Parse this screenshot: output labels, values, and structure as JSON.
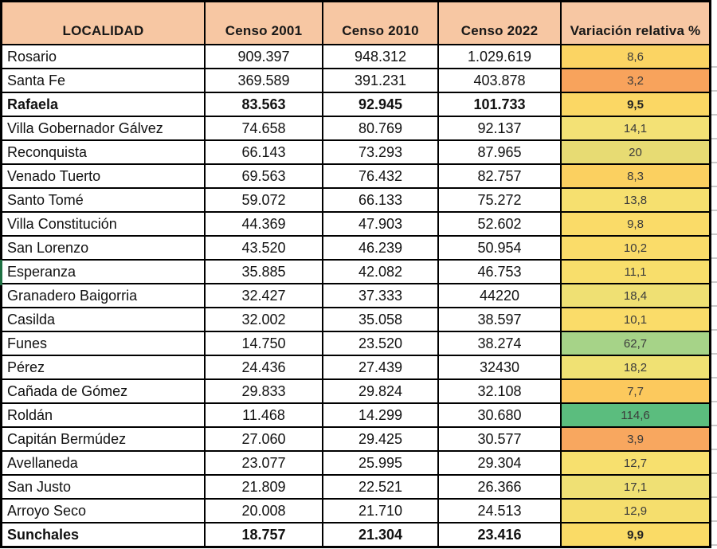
{
  "table": {
    "columns": [
      "LOCALIDAD",
      "Censo 2001",
      "Censo 2010",
      "Censo 2022",
      "Variación relativa %"
    ],
    "rows": [
      {
        "localidad": "Rosario",
        "censo_2001": "909.397",
        "censo_2010": "948.312",
        "censo_2022": "1.029.619",
        "variacion": "8,6",
        "variacion_color": "#FBD463",
        "bold": false
      },
      {
        "localidad": "Santa Fe",
        "censo_2001": "369.589",
        "censo_2010": "391.231",
        "censo_2022": "403.878",
        "variacion": "3,2",
        "variacion_color": "#F8A35C",
        "bold": false
      },
      {
        "localidad": "Rafaela",
        "censo_2001": "83.563",
        "censo_2010": "92.945",
        "censo_2022": "101.733",
        "variacion": "9,5",
        "variacion_color": "#FBD764",
        "bold": true
      },
      {
        "localidad": "Villa Gobernador Gálvez",
        "censo_2001": "74.658",
        "censo_2010": "80.769",
        "censo_2022": "92.137",
        "variacion": "14,1",
        "variacion_color": "#F3E175",
        "bold": false
      },
      {
        "localidad": "Reconquista",
        "censo_2001": "66.143",
        "censo_2010": "73.293",
        "censo_2022": "87.965",
        "variacion": "20",
        "variacion_color": "#E7DB73",
        "bold": false
      },
      {
        "localidad": "Venado Tuerto",
        "censo_2001": "69.563",
        "censo_2010": "76.432",
        "censo_2022": "82.757",
        "variacion": "8,3",
        "variacion_color": "#FBD060",
        "bold": false
      },
      {
        "localidad": "Santo Tomé",
        "censo_2001": "59.072",
        "censo_2010": "66.133",
        "censo_2022": "75.272",
        "variacion": "13,8",
        "variacion_color": "#F6E06F",
        "bold": false
      },
      {
        "localidad": "Villa Constitución",
        "censo_2001": "44.369",
        "censo_2010": "47.903",
        "censo_2022": "52.602",
        "variacion": "9,8",
        "variacion_color": "#FADB68",
        "bold": false
      },
      {
        "localidad": "San Lorenzo",
        "censo_2001": "43.520",
        "censo_2010": "46.239",
        "censo_2022": "50.954",
        "variacion": "10,2",
        "variacion_color": "#FADC69",
        "bold": false
      },
      {
        "localidad": "Esperanza",
        "censo_2001": "35.885",
        "censo_2010": "42.082",
        "censo_2022": "46.753",
        "variacion": "11,1",
        "variacion_color": "#F8DE6B",
        "bold": false
      },
      {
        "localidad": "Granadero Baigorria",
        "censo_2001": "32.427",
        "censo_2010": "37.333",
        "censo_2022": "44220",
        "variacion": "18,4",
        "variacion_color": "#EFE073",
        "bold": false
      },
      {
        "localidad": "Casilda",
        "censo_2001": "32.002",
        "censo_2010": "35.058",
        "censo_2022": "38.597",
        "variacion": "10,1",
        "variacion_color": "#FADC69",
        "bold": false
      },
      {
        "localidad": "Funes",
        "censo_2001": "14.750",
        "censo_2010": "23.520",
        "censo_2022": "38.274",
        "variacion": "62,7",
        "variacion_color": "#A6D388",
        "bold": false
      },
      {
        "localidad": "Pérez",
        "censo_2001": "24.436",
        "censo_2010": "27.439",
        "censo_2022": "32430",
        "variacion": "18,2",
        "variacion_color": "#F0E173",
        "bold": false
      },
      {
        "localidad": "Cañada de Gómez",
        "censo_2001": "29.833",
        "censo_2010": "29.824",
        "censo_2022": "32.108",
        "variacion": "7,7",
        "variacion_color": "#FCC95D",
        "bold": false
      },
      {
        "localidad": "Roldán",
        "censo_2001": "11.468",
        "censo_2010": "14.299",
        "censo_2022": "30.680",
        "variacion": "114,6",
        "variacion_color": "#5BBD7E",
        "bold": false
      },
      {
        "localidad": "Capitán Bermúdez",
        "censo_2001": "27.060",
        "censo_2010": "29.425",
        "censo_2022": "30.577",
        "variacion": "3,9",
        "variacion_color": "#F8A75F",
        "bold": false
      },
      {
        "localidad": "Avellaneda",
        "censo_2001": "23.077",
        "censo_2010": "25.995",
        "censo_2022": "29.304",
        "variacion": "12,7",
        "variacion_color": "#F7E06E",
        "bold": false
      },
      {
        "localidad": "San Justo",
        "censo_2001": "21.809",
        "censo_2010": "22.521",
        "censo_2022": "26.366",
        "variacion": "17,1",
        "variacion_color": "#EFE074",
        "bold": false
      },
      {
        "localidad": "Arroyo Seco",
        "censo_2001": "20.008",
        "censo_2010": "21.710",
        "censo_2022": "24.513",
        "variacion": "12,9",
        "variacion_color": "#F5DE6D",
        "bold": false
      },
      {
        "localidad": "Sunchales",
        "censo_2001": "18.757",
        "censo_2010": "21.304",
        "censo_2022": "23.416",
        "variacion": "9,9",
        "variacion_color": "#FADB66",
        "bold": true
      }
    ]
  },
  "colors": {
    "header_bg": "#F7C7A3",
    "grid_line": "#000000",
    "selection_green": "#1D6F42"
  }
}
